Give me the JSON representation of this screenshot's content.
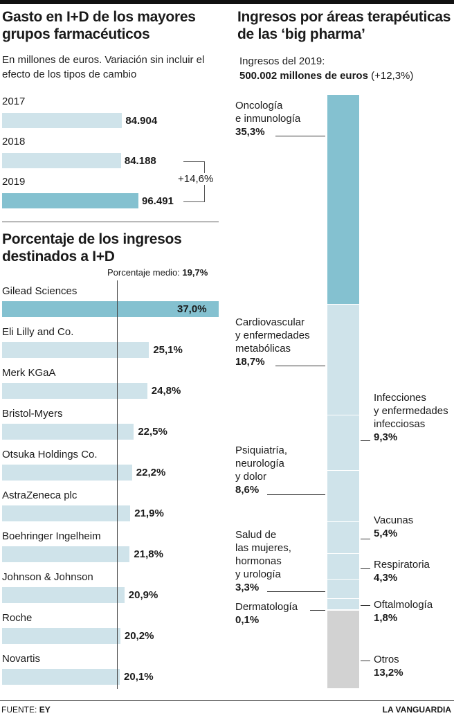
{
  "chart_data": [
    {
      "type": "bar",
      "orientation": "horizontal",
      "title": "Gasto en I+D de los mayores grupos farmacéuticos",
      "subtitle": "En millones de euros. Variación sin incluir el efecto de los tipos de cambio",
      "categories": [
        "2017",
        "2018",
        "2019"
      ],
      "values": [
        84904,
        84188,
        96491
      ],
      "value_labels": [
        "84.904",
        "84.188",
        "96.491"
      ],
      "annotation": "+14,6%",
      "colors": {
        "normal": "#cfe3ea",
        "highlight": "#84c1d0"
      }
    },
    {
      "type": "bar",
      "orientation": "horizontal",
      "title": "Porcentaje de los ingresos destinados a I+D",
      "reference_label": "Porcentaje medio:",
      "reference_value_label": "19,7%",
      "reference_value": 19.7,
      "categories": [
        "Gilead Sciences",
        "Eli Lilly and Co.",
        "Merk KGaA",
        "Bristol-Myers",
        "Otsuka Holdings Co.",
        "AstraZeneca plc",
        "Boehringer Ingelheim",
        "Johnson & Johnson",
        "Roche",
        "Novartis"
      ],
      "values": [
        37.0,
        25.1,
        24.8,
        22.5,
        22.2,
        21.9,
        21.8,
        20.9,
        20.2,
        20.1
      ],
      "value_labels": [
        "37,0%",
        "25,1%",
        "24,8%",
        "22,5%",
        "22,2%",
        "21,9%",
        "21,8%",
        "20,9%",
        "20,2%",
        "20,1%"
      ],
      "colors": {
        "normal": "#cfe3ea",
        "highlight": "#84c1d0"
      }
    },
    {
      "type": "stacked-bar",
      "title": "Ingresos por áreas terapéuticas de las ‘big pharma’",
      "note_label": "Ingresos del 2019:",
      "total_label": "500.002 millones de euros",
      "change_label": "(+12,3%)",
      "segments": [
        {
          "label": "Oncología e inmunología",
          "lines": [
            "Oncología",
            "e inmunología"
          ],
          "value": 35.3,
          "value_label": "35,3%",
          "side": "left"
        },
        {
          "label": "Cardiovascular y enfermedades metabólicas",
          "lines": [
            "Cardiovascular",
            "y enfermedades",
            "metabólicas"
          ],
          "value": 18.7,
          "value_label": "18,7%",
          "side": "left"
        },
        {
          "label": "Infecciones y enfermedades infecciosas",
          "lines": [
            "Infecciones",
            "y enfermedades",
            "infecciosas"
          ],
          "value": 9.3,
          "value_label": "9,3%",
          "side": "right"
        },
        {
          "label": "Psiquiatría, neurología y dolor",
          "lines": [
            "Psiquiatría,",
            "neurología",
            "y dolor"
          ],
          "value": 8.6,
          "value_label": "8,6%",
          "side": "left"
        },
        {
          "label": "Vacunas",
          "lines": [
            "Vacunas"
          ],
          "value": 5.4,
          "value_label": "5,4%",
          "side": "right"
        },
        {
          "label": "Respiratoria",
          "lines": [
            "Respiratoria"
          ],
          "value": 4.3,
          "value_label": "4,3%",
          "side": "right"
        },
        {
          "label": "Salud de las mujeres, hormonas y urología",
          "lines": [
            "Salud de",
            "las mujeres,",
            "hormonas",
            "y urología"
          ],
          "value": 3.3,
          "value_label": "3,3%",
          "side": "left"
        },
        {
          "label": "Oftalmología",
          "lines": [
            "Oftalmología"
          ],
          "value": 1.8,
          "value_label": "1,8%",
          "side": "right"
        },
        {
          "label": "Dermatología",
          "lines": [
            "Dermatología"
          ],
          "value": 0.1,
          "value_label": "0,1%",
          "side": "left"
        },
        {
          "label": "Otros",
          "lines": [
            "Otros"
          ],
          "value": 13.2,
          "value_label": "13,2%",
          "side": "right"
        }
      ],
      "colors": {
        "first": "#84c1d0",
        "normal": "#cfe3ea",
        "other": "#d2d2d2"
      }
    }
  ],
  "footer": {
    "source_label": "FUENTE:",
    "source_value": "EY",
    "brand": "LA VANGUARDIA"
  }
}
